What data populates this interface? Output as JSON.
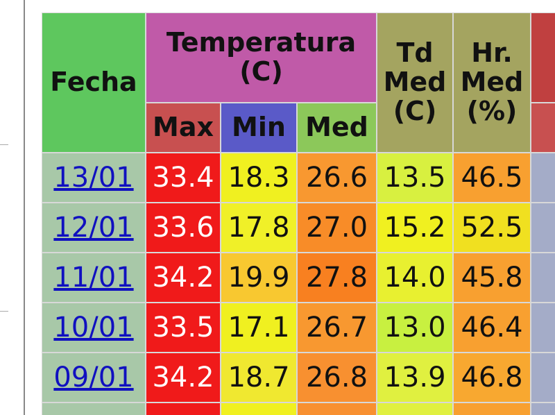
{
  "table": {
    "headers": {
      "fecha": "Fecha",
      "temperatura": "Temperatura (C)",
      "max": "Max",
      "min": "Min",
      "med": "Med",
      "td": "Td Med (C)",
      "hr": "Hr. Med (%)"
    },
    "rows": [
      [
        "13/01",
        "33.4",
        "18.3",
        "26.6",
        "13.5",
        "46.5"
      ],
      [
        "12/01",
        "33.6",
        "17.8",
        "27.0",
        "15.2",
        "52.5"
      ],
      [
        "11/01",
        "34.2",
        "19.9",
        "27.8",
        "14.0",
        "45.8"
      ],
      [
        "10/01",
        "33.5",
        "17.1",
        "26.7",
        "13.0",
        "46.4"
      ],
      [
        "09/01",
        "34.2",
        "18.7",
        "26.8",
        "13.9",
        "46.8"
      ]
    ]
  }
}
